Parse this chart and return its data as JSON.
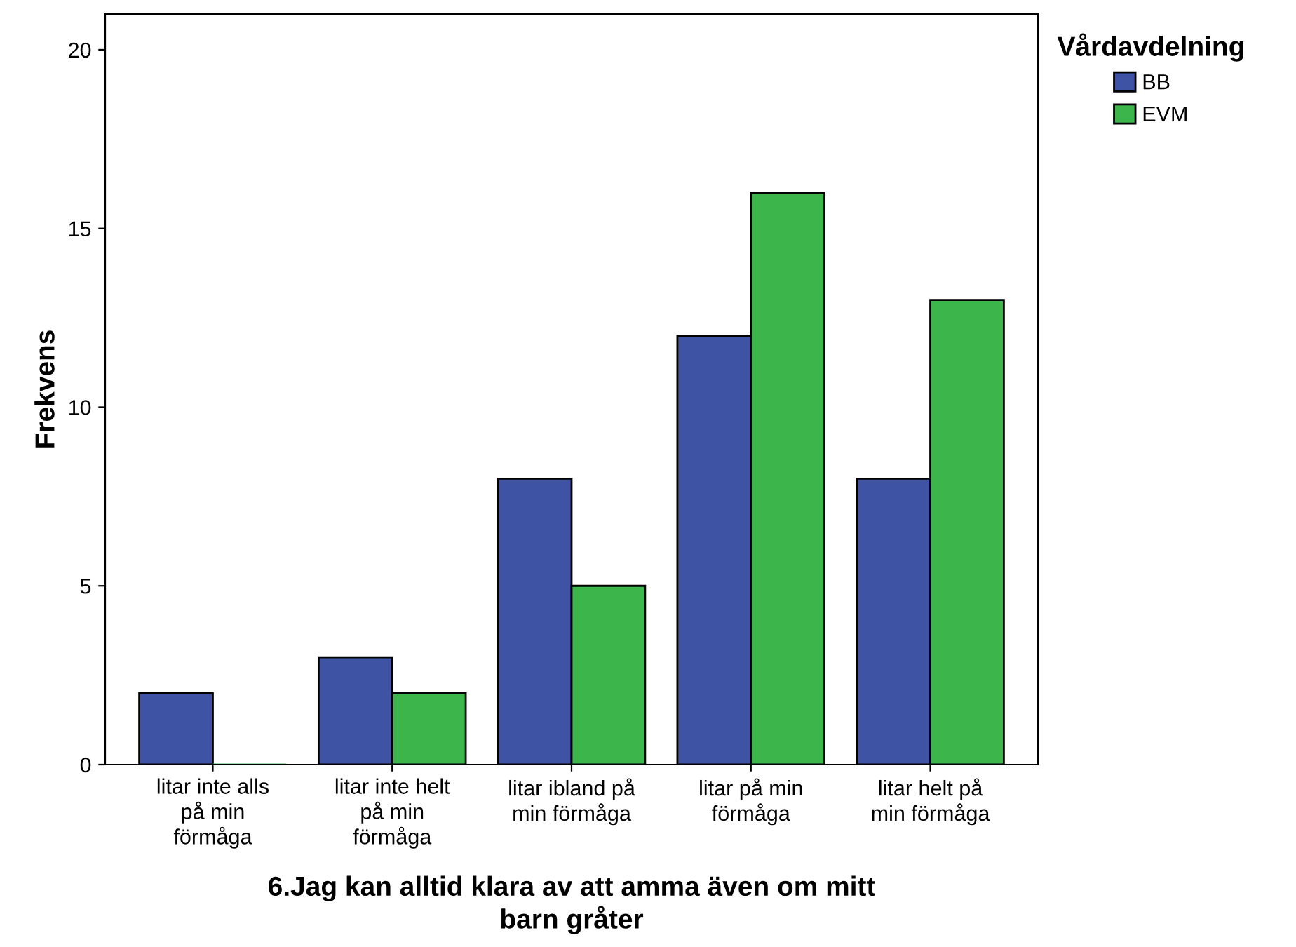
{
  "chart_data": {
    "type": "bar",
    "categories": [
      "litar inte alls\npå min\nförmåga",
      "litar inte helt\npå min\nförmåga",
      "litar ibland på\nmin förmåga",
      "litar på min\nförmåga",
      "litar helt på\nmin förmåga"
    ],
    "series": [
      {
        "name": "BB",
        "color": "#3e53a4",
        "values": [
          2,
          3,
          8,
          12,
          8
        ]
      },
      {
        "name": "EVM",
        "color": "#3cb54a",
        "values": [
          0,
          2,
          5,
          16,
          13
        ]
      }
    ],
    "xlabel": "6.Jag kan alltid klara av att amma även om mitt\nbarn gråter",
    "ylabel": "Frekvens",
    "legend_title": "Vårdavdelning",
    "ylim": [
      0,
      21
    ],
    "yticks": [
      0,
      5,
      10,
      15,
      20
    ],
    "grid": false,
    "legend": "top right"
  }
}
